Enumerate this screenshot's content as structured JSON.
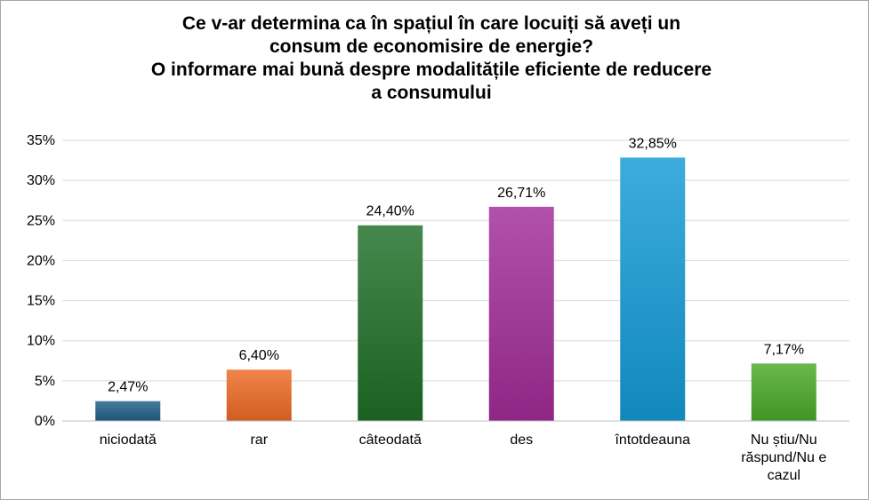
{
  "chart_data": {
    "type": "bar",
    "title_lines": [
      "Ce v-ar determina ca în spațiul în care locuiți să aveți un",
      "consum  de economisire de energie?",
      "O informare mai bună despre modalitățile eficiente de reducere",
      "a consumului"
    ],
    "xlabel": "",
    "ylabel": "",
    "categories": [
      [
        "niciodată"
      ],
      [
        "rar"
      ],
      [
        "câteodată"
      ],
      [
        "des"
      ],
      [
        "întotdeauna"
      ],
      [
        "Nu știu/Nu",
        "răspund/Nu e",
        "cazul"
      ]
    ],
    "values": [
      2.47,
      6.4,
      24.4,
      26.71,
      32.85,
      7.17
    ],
    "value_labels": [
      "2,47%",
      "6,40%",
      "24,40%",
      "26,71%",
      "32,85%",
      "7,17%"
    ],
    "colors": [
      "#1f5f86",
      "#ee6a24",
      "#1d6e26",
      "#a12b98",
      "#139ad6",
      "#49a928"
    ],
    "yticks": [
      0,
      5,
      10,
      15,
      20,
      25,
      30,
      35
    ],
    "ytick_labels": [
      "0%",
      "5%",
      "10%",
      "15%",
      "20%",
      "25%",
      "30%",
      "35%"
    ],
    "ylim": [
      0,
      35
    ],
    "grid": true,
    "legend": "none"
  }
}
